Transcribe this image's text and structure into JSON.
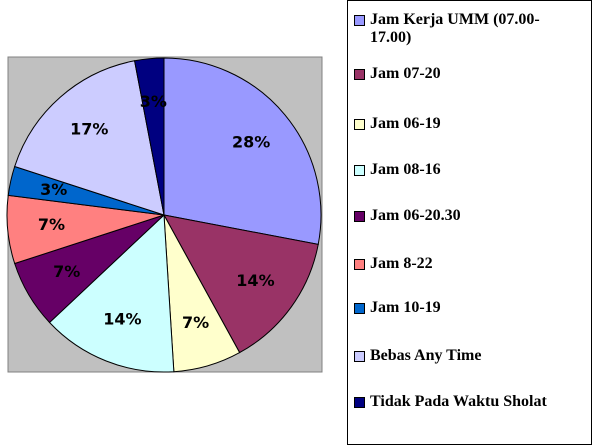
{
  "chart_data": {
    "type": "pie",
    "categories": [
      "Jam Kerja UMM (07.00-17.00)",
      "Jam 07-20",
      "Jam 06-19",
      "Jam 08-16",
      "Jam 06-20.30",
      "Jam 8-22",
      "Jam 10-19",
      "Bebas Any Time",
      "Tidak Pada Waktu Sholat"
    ],
    "values": [
      28,
      14,
      7,
      14,
      7,
      7,
      3,
      17,
      3
    ],
    "value_labels": [
      "28%",
      "14%",
      "7%",
      "14%",
      "7%",
      "7%",
      "3%",
      "17%",
      "3%"
    ],
    "colors": [
      "#9999ff",
      "#993366",
      "#ffffcc",
      "#ccffff",
      "#660066",
      "#ff8080",
      "#0066cc",
      "#ccccff",
      "#000080"
    ]
  }
}
